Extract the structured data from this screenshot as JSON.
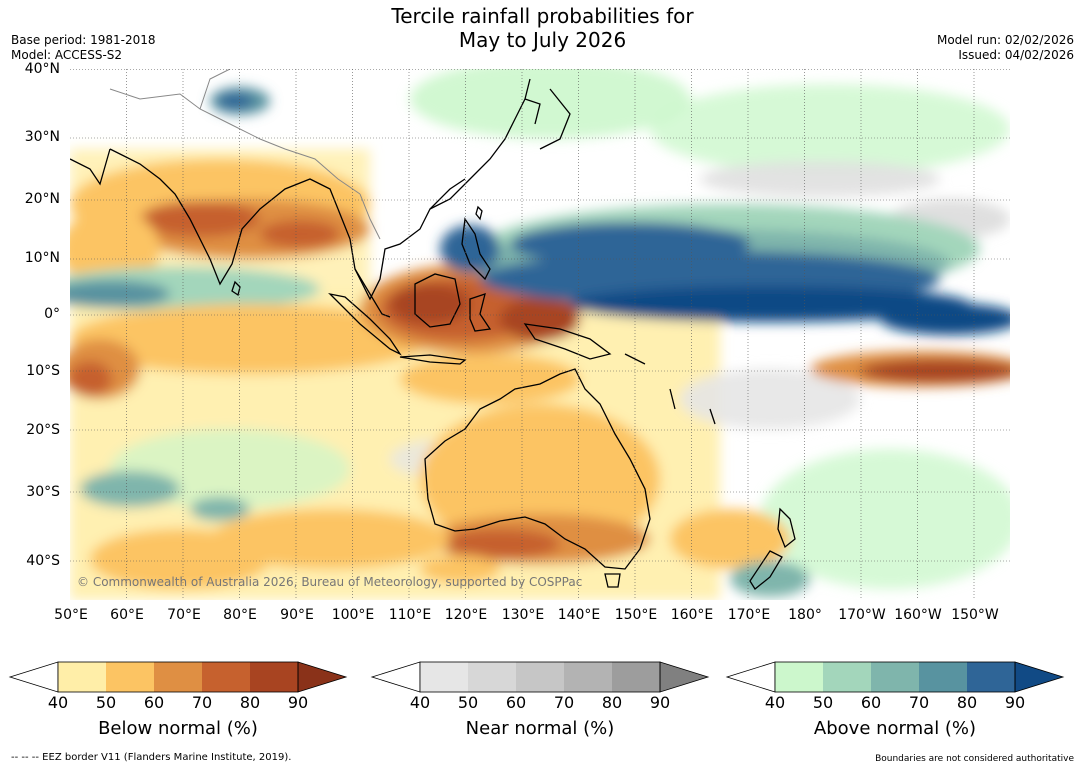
{
  "title_line1": "Tercile rainfall probabilities for",
  "title_line2": "May to July 2026",
  "base_period": "Base period: 1981-2018",
  "model": "Model: ACCESS-S2",
  "model_run": "Model run: 02/02/2026",
  "issued": "Issued: 04/02/2026",
  "copyright": "© Commonwealth of Australia 2026, Bureau of Meteorology, supported by COSPPac",
  "lat_labels": [
    "40°N",
    "30°N",
    "20°N",
    "10°N",
    "0°",
    "10°S",
    "20°S",
    "30°S",
    "40°S"
  ],
  "lon_labels": [
    "50°E",
    "60°E",
    "70°E",
    "80°E",
    "90°E",
    "100°E",
    "110°E",
    "120°E",
    "130°E",
    "140°E",
    "150°E",
    "160°E",
    "170°E",
    "180°",
    "170°W",
    "160°W",
    "150°W"
  ],
  "colorbars": [
    {
      "title": "Below normal (%)",
      "ticks": [
        "40",
        "50",
        "60",
        "70",
        "80",
        "90"
      ],
      "colors": [
        "#ffeea8",
        "#fcc463",
        "#df8f43",
        "#c6612e",
        "#a84421"
      ],
      "extend_color": "#8a3219"
    },
    {
      "title": "Near normal (%)",
      "ticks": [
        "40",
        "50",
        "60",
        "70",
        "80",
        "90"
      ],
      "colors": [
        "#e6e6e6",
        "#d7d7d7",
        "#c6c6c6",
        "#b3b3b3",
        "#9d9d9d"
      ],
      "extend_color": "#808080"
    },
    {
      "title": "Above normal (%)",
      "ticks": [
        "40",
        "50",
        "60",
        "70",
        "80",
        "90"
      ],
      "colors": [
        "#ccf7cc",
        "#a3d6bb",
        "#7fb5ac",
        "#5893a0",
        "#2f6597"
      ],
      "extend_color": "#114a85"
    }
  ],
  "eez_note": "--  --  -- EEZ border V11 (Flanders Marine Institute, 2019).",
  "boundary_note": "Boundaries are not considered authoritative"
}
